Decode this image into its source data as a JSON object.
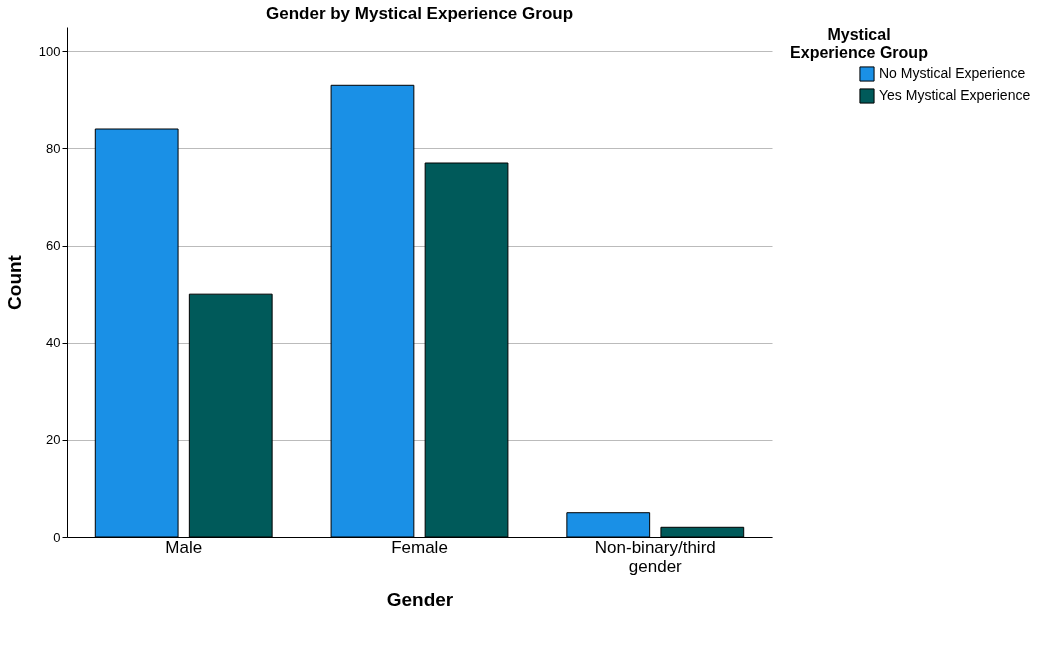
{
  "chart_data": {
    "type": "bar",
    "title": "Gender by Mystical Experience Group",
    "xlabel": "Gender",
    "ylabel": "Count",
    "legend_title": "Mystical Experience Group",
    "categories": [
      "Male",
      "Female",
      "Non-binary/third gender"
    ],
    "series": [
      {
        "name": "No Mystical Experience",
        "color": "#1a90e6",
        "values": [
          84,
          93,
          5
        ]
      },
      {
        "name": "Yes Mystical Experience",
        "color": "#005a5a",
        "values": [
          50,
          77,
          2
        ]
      }
    ],
    "ylim": [
      0,
      105
    ],
    "yticks": [
      0,
      20,
      40,
      60,
      80,
      100
    ],
    "grid": "y",
    "legend": "top right"
  }
}
